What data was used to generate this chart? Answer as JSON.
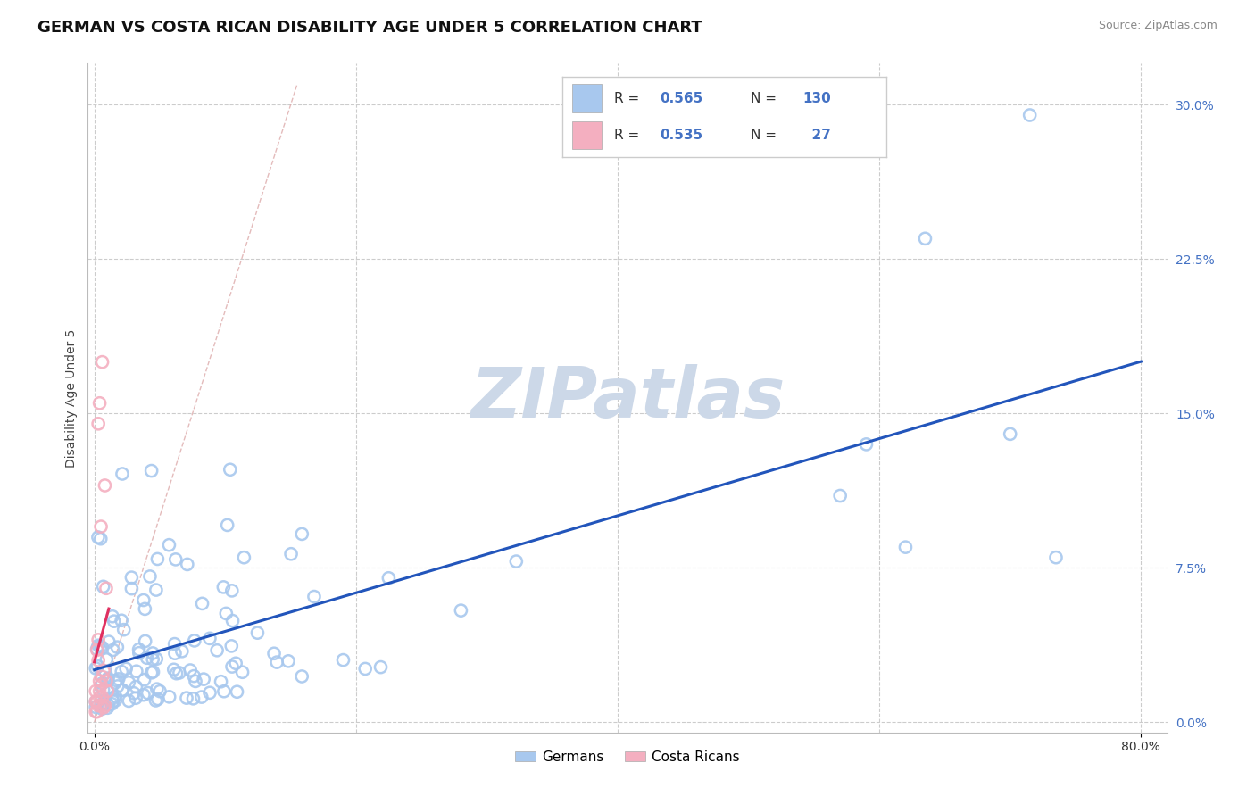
{
  "title": "GERMAN VS COSTA RICAN DISABILITY AGE UNDER 5 CORRELATION CHART",
  "source": "Source: ZipAtlas.com",
  "ylabel": "Disability Age Under 5",
  "xlim": [
    -0.005,
    0.82
  ],
  "ylim": [
    -0.005,
    0.32
  ],
  "xtick_positions": [
    0.0,
    0.8
  ],
  "xticklabels": [
    "0.0%",
    "80.0%"
  ],
  "yticks_right": [
    0.0,
    0.075,
    0.15,
    0.225,
    0.3
  ],
  "yticklabels_right": [
    "0.0%",
    "7.5%",
    "15.0%",
    "22.5%",
    "30.0%"
  ],
  "german_color": "#a8c8ee",
  "costa_rican_color": "#f4afc0",
  "german_line_color": "#2255bb",
  "costa_rican_line_color": "#e03060",
  "ref_line_color": "#ddaaaa",
  "watermark_color": "#ccd8e8",
  "german_R": 0.565,
  "german_N": 130,
  "costa_rican_R": 0.535,
  "costa_rican_N": 27,
  "legend_label_german": "Germans",
  "legend_label_cr": "Costa Ricans",
  "title_fontsize": 13,
  "axis_label_fontsize": 10,
  "tick_fontsize": 10,
  "background_color": "#ffffff",
  "grid_color": "#cccccc"
}
